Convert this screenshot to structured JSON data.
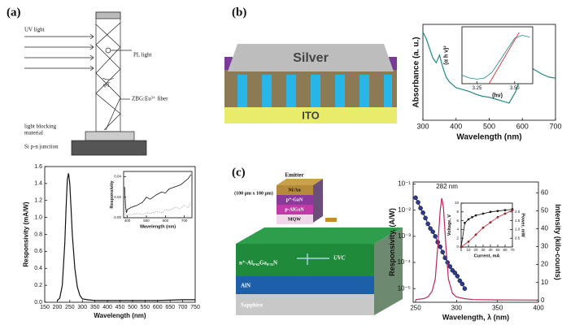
{
  "panel_labels": [
    "(a)",
    "(b)",
    "(c)"
  ],
  "diagram_a": {
    "uv_light": "UV light",
    "pl_light": "PL light",
    "angle": "φT",
    "fiber": "ZBG:Eu³⁺ fiber",
    "blocking_1": "light blocking",
    "blocking_2": "material",
    "junction": "Si p-n junction"
  },
  "diagram_b": {
    "top": "Silver",
    "bottom": "ITO"
  },
  "diagram_c": {
    "emitter": "Emitter",
    "size": "(100 μm x 100 μm)",
    "layers": [
      "Ni/Au",
      "p⁺-GaN",
      "p-AlGaN",
      "MQW"
    ],
    "n_layer": "n⁺-Al₀.₆₅Ga₀.₃₅N",
    "uvc": "UVC",
    "aln": "AlN",
    "substrate": "Sapphire"
  },
  "chart_data": [
    {
      "type": "line",
      "xlabel": "Wavelength (nm)",
      "ylabel": "Responsivity (mA/W)",
      "xlim": [
        150,
        750
      ],
      "ylim": [
        0,
        1.6
      ],
      "xticks": [
        150,
        200,
        250,
        300,
        350,
        400,
        450,
        500,
        550,
        600,
        650,
        700,
        750
      ],
      "yticks": [
        {
          "value": 0,
          "label": "0.0"
        },
        0.2,
        0.4,
        0.6,
        0.8,
        {
          "value": 1,
          "label": "1.0"
        },
        1.2,
        1.4,
        1.6
      ],
      "series": [
        {
          "color": "#111111",
          "x": [
            200,
            210,
            220,
            230,
            235,
            240,
            245,
            250,
            255,
            260,
            270,
            280,
            290,
            300,
            320,
            350,
            400,
            500,
            600,
            700,
            750
          ],
          "values": [
            0.02,
            0.05,
            0.2,
            0.7,
            1.1,
            1.45,
            1.52,
            1.4,
            1.1,
            0.8,
            0.4,
            0.18,
            0.08,
            0.04,
            0.03,
            0.02,
            0.02,
            0.02,
            0.02,
            0.03,
            0.03
          ]
        }
      ]
    },
    {
      "type": "line",
      "xlabel": "Wavelength (nm)",
      "ylabel": "Responsivity",
      "xlim": [
        380,
        740
      ],
      "ylim": [
        0,
        0.045
      ],
      "xticks": [
        400,
        500,
        600,
        700
      ],
      "yticks": [
        {
          "value": 0,
          "label": "0.00"
        },
        0.02,
        0.04
      ],
      "series": [
        {
          "color": "#111111",
          "line_style": "solid",
          "x": [
            385,
            390,
            395,
            400,
            420,
            450,
            480,
            500,
            520,
            550,
            580,
            600,
            620,
            650,
            680,
            700,
            720,
            735
          ],
          "values": [
            0.03,
            0.012,
            0.005,
            0.008,
            0.01,
            0.012,
            0.015,
            0.02,
            0.018,
            0.022,
            0.025,
            0.024,
            0.028,
            0.03,
            0.032,
            0.035,
            0.038,
            0.042
          ]
        },
        {
          "color": "#888888",
          "line_style": "dotted",
          "x": [
            385,
            390,
            395,
            400,
            420,
            450,
            480,
            500,
            520,
            550,
            580,
            600,
            620,
            650,
            680,
            700,
            720,
            735
          ],
          "values": [
            0.02,
            0.005,
            0.002,
            0.003,
            0.003,
            0.004,
            0.003,
            0.005,
            0.004,
            0.006,
            0.005,
            0.008,
            0.007,
            0.01,
            0.009,
            0.012,
            0.01,
            0.015
          ]
        }
      ]
    },
    {
      "type": "line",
      "xlabel": "Wavelength (nm)",
      "ylabel": "Absorbance (a. u.)",
      "xlim": [
        300,
        700
      ],
      "ylim": [
        0,
        1
      ],
      "xticks": [
        300,
        400,
        500,
        600,
        700
      ],
      "series": [
        {
          "color": "#1f8a85",
          "x": [
            300,
            310,
            320,
            330,
            340,
            350,
            360,
            370,
            380,
            400,
            420,
            440,
            460,
            480,
            500,
            520,
            540,
            560,
            580,
            600,
            620,
            640,
            660,
            680,
            700
          ],
          "values": [
            0.92,
            0.85,
            0.75,
            0.65,
            0.6,
            0.68,
            0.55,
            0.45,
            0.4,
            0.34,
            0.32,
            0.3,
            0.27,
            0.25,
            0.24,
            0.22,
            0.2,
            0.18,
            0.3,
            0.5,
            0.56,
            0.52,
            0.48,
            0.45,
            0.44
          ]
        }
      ]
    },
    {
      "type": "line",
      "xlabel": "(hν)",
      "ylabel": "(α h ν)²",
      "xlim": [
        3.15,
        3.62
      ],
      "ylim": [
        0,
        1
      ],
      "xticks": [
        3.25,
        {
          "value": 3.5,
          "label": "3.50"
        }
      ],
      "series": [
        {
          "color": "#1f8a85",
          "x": [
            3.15,
            3.2,
            3.25,
            3.3,
            3.35,
            3.4,
            3.45,
            3.5,
            3.55,
            3.6
          ],
          "values": [
            0.15,
            0.1,
            0.08,
            0.1,
            0.2,
            0.4,
            0.6,
            0.8,
            0.85,
            0.82
          ]
        },
        {
          "color": "#d0202a",
          "x": [
            3.33,
            3.53
          ],
          "values": [
            0,
            0.9
          ]
        }
      ]
    },
    {
      "type": "line",
      "xlabel": "Wavelength, λ (nm)",
      "ylabel": "Responsivity, (A/W)",
      "y2label": "Intensity (kilo-counts)",
      "annotation": "282 nm",
      "xlim": [
        247,
        400
      ],
      "ylim": [
        3e-06,
        0.12
      ],
      "log_y": true,
      "y2lim": [
        -1,
        66
      ],
      "xticks": [
        250,
        300,
        350,
        400
      ],
      "yticks": [
        {
          "value": 1e-05,
          "label": "10⁻⁵"
        },
        {
          "value": 0.0001,
          "label": "10⁻⁴"
        },
        {
          "value": 0.001,
          "label": "10⁻³"
        },
        {
          "value": 0.01,
          "label": "10⁻²"
        },
        {
          "value": 0.1,
          "label": "10⁻¹"
        }
      ],
      "y2ticks": [
        0,
        10,
        20,
        30,
        40,
        50,
        60
      ],
      "series": [
        {
          "color": "#2b3a8f",
          "marker": "circle",
          "x": [
            250,
            253,
            256,
            259,
            262,
            265,
            268,
            271,
            274,
            277,
            280,
            283,
            286,
            289,
            292,
            295,
            298,
            301,
            304,
            307,
            310
          ],
          "values": [
            0.03,
            0.02,
            0.012,
            0.008,
            0.005,
            0.003,
            0.002,
            0.0015,
            0.001,
            0.0006,
            0.0004,
            0.00025,
            0.00015,
            0.0001,
            7e-05,
            5e-05,
            4e-05,
            3e-05,
            2e-05,
            1.5e-05,
            1e-05
          ]
        },
        {
          "color": "#c0245c",
          "axis": "y2",
          "x": [
            250,
            260,
            265,
            270,
            274,
            277,
            280,
            282,
            284,
            287,
            290,
            295,
            300,
            310,
            320,
            350,
            400
          ],
          "values": [
            0.5,
            1,
            2,
            5,
            12,
            30,
            50,
            57,
            52,
            30,
            12,
            4,
            2,
            1,
            0.5,
            0.3,
            0.2
          ]
        }
      ]
    },
    {
      "type": "line",
      "xlabel": "Current, mA",
      "ylabel": "Voltage, V",
      "y2label": "Power, mW",
      "xlim": [
        0,
        70
      ],
      "ylim": [
        0,
        10
      ],
      "y2lim": [
        0,
        2.5
      ],
      "xticks": [
        0,
        10,
        20,
        30,
        40,
        50,
        60,
        70
      ],
      "yticks": [
        0,
        2,
        4,
        6,
        8,
        10
      ],
      "y2ticks": [
        0.5,
        {
          "value": 1,
          "label": "1.0"
        },
        1.5,
        {
          "value": 2,
          "label": "2.0"
        }
      ],
      "series": [
        {
          "color": "#111111",
          "marker": "square",
          "x": [
            0,
            5,
            10,
            15,
            20,
            30,
            40,
            50,
            60,
            70
          ],
          "values": [
            0,
            5.5,
            6.3,
            6.8,
            7.2,
            7.6,
            8,
            8.2,
            8.4,
            8.6
          ]
        },
        {
          "color": "#d0202a",
          "axis": "y2",
          "marker": "circle",
          "x": [
            0,
            10,
            20,
            30,
            40,
            50,
            60,
            70
          ],
          "values": [
            0,
            0.3,
            0.7,
            1.1,
            1.4,
            1.7,
            1.9,
            2.1
          ]
        }
      ]
    }
  ]
}
